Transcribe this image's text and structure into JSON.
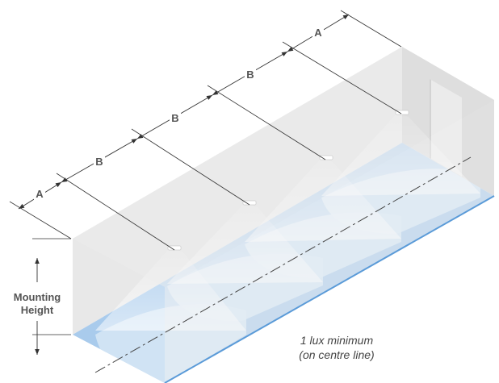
{
  "dimensions": {
    "end_spacing_label": "A",
    "fitting_spacing_label": "B"
  },
  "mounting_height": {
    "line1": "Mounting",
    "line2": "Height"
  },
  "note": {
    "line1": "1 lux minimum",
    "line2": "(on centre line)"
  },
  "colors": {
    "floor": "#a9cbec",
    "floor_edge": "#5b9bd8",
    "wall": "#e6e6e6",
    "end_wall": "#cfcfcf",
    "beam": "#ffffff",
    "dimension_line": "#333333"
  }
}
